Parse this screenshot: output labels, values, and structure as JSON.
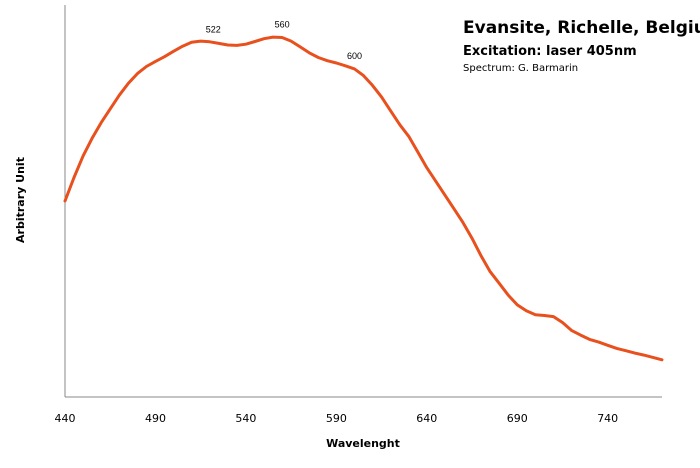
{
  "chart_data": {
    "type": "line",
    "title": "Evansite, Richelle, Belgium",
    "subtitle": "Excitation: laser 405nm",
    "credit": "Spectrum: G. Barmarin",
    "xlabel": "Wavelenght",
    "ylabel": "Arbitrary Unit",
    "xlim": [
      440,
      770
    ],
    "ylim": [
      0,
      1
    ],
    "x_ticks": [
      "440",
      "490",
      "540",
      "590",
      "640",
      "690",
      "740"
    ],
    "line_color": "#e8501e",
    "grid": false,
    "y_tick_labels": false,
    "series": [
      {
        "x": [
          440,
          445,
          450,
          455,
          460,
          465,
          470,
          475,
          480,
          485,
          490,
          495,
          500,
          505,
          510,
          515,
          520,
          525,
          530,
          535,
          540,
          545,
          550,
          555,
          560,
          565,
          570,
          575,
          580,
          585,
          590,
          595,
          600,
          605,
          610,
          615,
          620,
          625,
          630,
          635,
          640,
          645,
          650,
          655,
          660,
          665,
          670,
          675,
          680,
          685,
          690,
          695,
          700,
          705,
          710,
          715,
          720,
          725,
          730,
          735,
          740,
          745,
          750,
          755,
          760,
          765,
          770
        ],
        "y": [
          0.5,
          0.56,
          0.615,
          0.66,
          0.7,
          0.735,
          0.77,
          0.8,
          0.825,
          0.843,
          0.856,
          0.868,
          0.882,
          0.895,
          0.905,
          0.908,
          0.906,
          0.902,
          0.898,
          0.897,
          0.9,
          0.907,
          0.914,
          0.918,
          0.917,
          0.908,
          0.893,
          0.878,
          0.866,
          0.858,
          0.852,
          0.845,
          0.837,
          0.82,
          0.795,
          0.765,
          0.73,
          0.695,
          0.665,
          0.625,
          0.585,
          0.55,
          0.515,
          0.48,
          0.445,
          0.405,
          0.36,
          0.32,
          0.29,
          0.26,
          0.235,
          0.22,
          0.21,
          0.208,
          0.205,
          0.19,
          0.17,
          0.158,
          0.147,
          0.14,
          0.132,
          0.124,
          0.118,
          0.112,
          0.107,
          0.101,
          0.095
        ]
      }
    ],
    "annotations": [
      {
        "text": "522",
        "x": 522
      },
      {
        "text": "560",
        "x": 560
      },
      {
        "text": "600",
        "x": 600
      }
    ]
  }
}
